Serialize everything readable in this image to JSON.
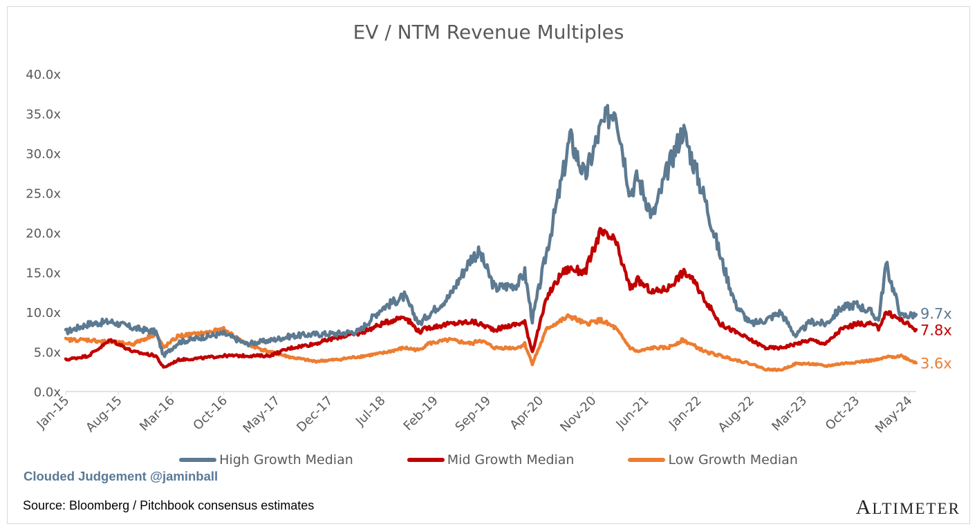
{
  "chart_data": {
    "type": "line",
    "title": "EV / NTM Revenue Multiples",
    "xlabel": "",
    "ylabel": "",
    "ylim": [
      0,
      40
    ],
    "y_ticks": [
      "0.0x",
      "5.0x",
      "10.0x",
      "15.0x",
      "20.0x",
      "25.0x",
      "30.0x",
      "35.0x",
      "40.0x"
    ],
    "x_ticks": [
      "Jan-15",
      "Aug-15",
      "Mar-16",
      "Oct-16",
      "May-17",
      "Dec-17",
      "Jul-18",
      "Feb-19",
      "Sep-19",
      "Apr-20",
      "Nov-20",
      "Jun-21",
      "Jan-22",
      "Aug-22",
      "Mar-23",
      "Oct-23",
      "May-24"
    ],
    "grid": false,
    "legend_position": "bottom",
    "x": [
      "2015-01",
      "2015-04",
      "2015-07",
      "2015-10",
      "2016-01",
      "2016-02",
      "2016-04",
      "2016-07",
      "2016-10",
      "2017-01",
      "2017-04",
      "2017-07",
      "2017-10",
      "2018-01",
      "2018-04",
      "2018-07",
      "2018-10",
      "2018-12",
      "2019-01",
      "2019-04",
      "2019-07",
      "2019-08",
      "2019-10",
      "2020-01",
      "2020-02",
      "2020-03",
      "2020-05",
      "2020-07",
      "2020-08",
      "2020-10",
      "2020-12",
      "2021-02",
      "2021-04",
      "2021-05",
      "2021-07",
      "2021-09",
      "2021-11",
      "2021-12",
      "2022-02",
      "2022-04",
      "2022-06",
      "2022-08",
      "2022-10",
      "2022-12",
      "2023-02",
      "2023-04",
      "2023-06",
      "2023-08",
      "2023-10",
      "2023-12",
      "2024-01",
      "2024-02",
      "2024-04",
      "2024-06"
    ],
    "series": [
      {
        "name": "High Growth Median",
        "color": "#5c7a91",
        "end_label": "9.7x",
        "values": [
          7.5,
          8.5,
          8.8,
          8.0,
          7.5,
          4.5,
          6.2,
          6.8,
          7.3,
          6.0,
          6.4,
          7.0,
          7.2,
          7.3,
          7.6,
          10.5,
          12.0,
          8.5,
          9.5,
          12.0,
          17.0,
          17.5,
          13.0,
          13.5,
          15.0,
          9.0,
          18.0,
          27.0,
          32.0,
          27.0,
          33.0,
          36.0,
          25.0,
          27.0,
          22.0,
          28.0,
          33.0,
          30.0,
          24.0,
          17.0,
          11.0,
          8.5,
          9.0,
          10.0,
          7.0,
          8.8,
          8.5,
          10.5,
          11.0,
          10.0,
          9.0,
          16.0,
          9.5,
          9.7
        ]
      },
      {
        "name": "Mid Growth Median",
        "color": "#c00000",
        "end_label": "7.8x",
        "values": [
          4.0,
          4.5,
          6.5,
          5.0,
          4.5,
          3.0,
          4.0,
          4.2,
          4.5,
          4.5,
          4.5,
          5.5,
          6.0,
          6.8,
          7.3,
          8.5,
          9.5,
          7.5,
          8.0,
          8.5,
          8.8,
          8.5,
          7.8,
          8.5,
          8.7,
          5.0,
          12.0,
          15.0,
          15.5,
          15.0,
          20.0,
          19.0,
          13.0,
          14.0,
          12.5,
          13.0,
          15.0,
          14.5,
          11.5,
          8.5,
          7.5,
          6.5,
          5.5,
          5.5,
          6.0,
          6.5,
          6.0,
          7.8,
          8.5,
          8.5,
          8.0,
          10.0,
          9.0,
          7.8
        ]
      },
      {
        "name": "Low Growth Median",
        "color": "#ed7d31",
        "end_label": "3.6x",
        "values": [
          6.5,
          6.5,
          6.2,
          6.0,
          7.3,
          5.5,
          7.0,
          7.3,
          7.8,
          6.0,
          5.0,
          4.3,
          3.8,
          4.0,
          4.4,
          4.8,
          5.5,
          5.2,
          6.0,
          6.5,
          6.0,
          6.5,
          5.5,
          5.5,
          6.0,
          3.5,
          8.0,
          9.0,
          9.5,
          8.5,
          9.0,
          8.0,
          5.5,
          5.0,
          5.5,
          5.5,
          6.5,
          6.0,
          5.0,
          4.5,
          4.0,
          3.5,
          2.8,
          2.7,
          3.5,
          3.5,
          3.2,
          3.5,
          3.7,
          3.9,
          4.0,
          4.3,
          4.5,
          3.6
        ]
      }
    ]
  },
  "footer": {
    "watermark": "Clouded Judgement @jaminball",
    "source": "Source: Bloomberg / Pitchbook consensus estimates",
    "brand_first": "A",
    "brand_rest": "LTIMETER"
  }
}
